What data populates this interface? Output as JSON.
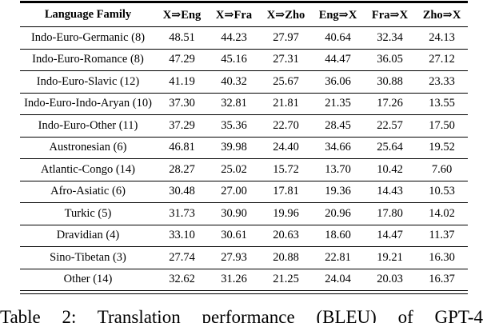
{
  "table": {
    "columns": [
      {
        "label": "Language Family"
      },
      {
        "label": "X⇒Eng"
      },
      {
        "label": "X⇒Fra"
      },
      {
        "label": "X⇒Zho"
      },
      {
        "label": "Eng⇒X"
      },
      {
        "label": "Fra⇒X"
      },
      {
        "label": "Zho⇒X"
      }
    ],
    "rows": [
      {
        "family": "Indo-Euro-Germanic (8)",
        "values": [
          "48.51",
          "44.23",
          "27.97",
          "40.64",
          "32.34",
          "24.13"
        ]
      },
      {
        "family": "Indo-Euro-Romance (8)",
        "values": [
          "47.29",
          "45.16",
          "27.31",
          "44.47",
          "36.05",
          "27.12"
        ]
      },
      {
        "family": "Indo-Euro-Slavic (12)",
        "values": [
          "41.19",
          "40.32",
          "25.67",
          "36.06",
          "30.88",
          "23.33"
        ]
      },
      {
        "family": "Indo-Euro-Indo-Aryan (10)",
        "values": [
          "37.30",
          "32.81",
          "21.81",
          "21.35",
          "17.26",
          "13.55"
        ]
      },
      {
        "family": "Indo-Euro-Other (11)",
        "values": [
          "37.29",
          "35.36",
          "22.70",
          "28.45",
          "22.57",
          "17.50"
        ]
      },
      {
        "family": "Austronesian (6)",
        "values": [
          "46.81",
          "39.98",
          "24.40",
          "34.66",
          "25.64",
          "19.52"
        ]
      },
      {
        "family": "Atlantic-Congo (14)",
        "values": [
          "28.27",
          "25.02",
          "15.72",
          "13.70",
          "10.42",
          "7.60"
        ]
      },
      {
        "family": "Afro-Asiatic (6)",
        "values": [
          "30.48",
          "27.00",
          "17.81",
          "19.36",
          "14.43",
          "10.53"
        ]
      },
      {
        "family": "Turkic (5)",
        "values": [
          "31.73",
          "30.90",
          "19.96",
          "20.96",
          "17.80",
          "14.02"
        ]
      },
      {
        "family": "Dravidian (4)",
        "values": [
          "33.10",
          "30.61",
          "20.63",
          "18.60",
          "14.47",
          "11.37"
        ]
      },
      {
        "family": "Sino-Tibetan (3)",
        "values": [
          "27.74",
          "27.93",
          "20.88",
          "22.81",
          "19.21",
          "16.30"
        ]
      },
      {
        "family": "Other (14)",
        "values": [
          "32.62",
          "31.26",
          "21.25",
          "24.04",
          "20.03",
          "16.37"
        ]
      }
    ]
  },
  "caption": {
    "text": "Table 2: Translation performance (BLEU) of GPT-4"
  }
}
